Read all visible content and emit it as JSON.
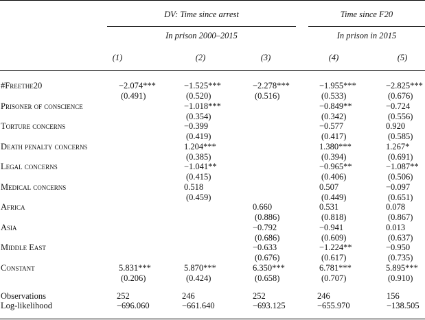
{
  "header": {
    "group1_title": "DV: Time since arrest",
    "group2_title": "Time since F20",
    "group1_sub": "In prison 2000–2015",
    "group2_sub": "In prison in 2015",
    "columns": [
      "(1)",
      "(2)",
      "(3)",
      "(4)",
      "(5)"
    ]
  },
  "rows": [
    {
      "label": "#Freethe20",
      "coef": [
        "−2.074***",
        "−1.525***",
        "−2.278***",
        "−1.955***",
        "−2.825***"
      ],
      "se": [
        "(0.491)",
        "(0.520)",
        "(0.516)",
        "(0.533)",
        "(0.676)"
      ]
    },
    {
      "label": "Prisoner of conscience",
      "coef": [
        "",
        "−1.018***",
        "",
        "−0.849**",
        "−0.724"
      ],
      "se": [
        "",
        "(0.354)",
        "",
        "(0.342)",
        "(0.556)"
      ]
    },
    {
      "label": "Torture concerns",
      "coef": [
        "",
        "−0.399",
        "",
        "−0.577",
        "0.920"
      ],
      "se": [
        "",
        "(0.419)",
        "",
        "(0.417)",
        "(0.585)"
      ]
    },
    {
      "label": "Death penalty concerns",
      "coef": [
        "",
        "1.204***",
        "",
        "1.380***",
        "1.267*"
      ],
      "se": [
        "",
        "(0.385)",
        "",
        "(0.394)",
        "(0.691)"
      ]
    },
    {
      "label": "Legal concerns",
      "coef": [
        "",
        "−1.041**",
        "",
        "−0.965**",
        "−1.087**"
      ],
      "se": [
        "",
        "(0.415)",
        "",
        "(0.406)",
        "(0.506)"
      ]
    },
    {
      "label": "Medical concerns",
      "coef": [
        "",
        "0.518",
        "",
        "0.507",
        "−0.097"
      ],
      "se": [
        "",
        "(0.459)",
        "",
        "(0.449)",
        "(0.651)"
      ]
    },
    {
      "label": "Africa",
      "coef": [
        "",
        "",
        "0.660",
        "0.531",
        "0.078"
      ],
      "se": [
        "",
        "",
        "(0.886)",
        "(0.818)",
        "(0.867)"
      ]
    },
    {
      "label": "Asia",
      "coef": [
        "",
        "",
        "−0.792",
        "−0.941",
        "0.013"
      ],
      "se": [
        "",
        "",
        "(0.686)",
        "(0.609)",
        "(0.637)"
      ]
    },
    {
      "label": "Middle East",
      "coef": [
        "",
        "",
        "−0.633",
        "−1.224**",
        "−0.950"
      ],
      "se": [
        "",
        "",
        "(0.676)",
        "(0.617)",
        "(0.735)"
      ]
    },
    {
      "label": "Constant",
      "coef": [
        "5.831***",
        "5.870***",
        "6.350***",
        "6.781***",
        "5.895***"
      ],
      "se": [
        "(0.206)",
        "(0.424)",
        "(0.658)",
        "(0.707)",
        "(0.910)"
      ]
    }
  ],
  "stats": [
    {
      "label": "Observations",
      "values": [
        "252",
        "246",
        "252",
        "246",
        "156"
      ]
    },
    {
      "label": "Log-likelihood",
      "values": [
        "−696.060",
        "−661.640",
        "−693.125",
        "−655.970",
        "−138.505"
      ]
    }
  ]
}
